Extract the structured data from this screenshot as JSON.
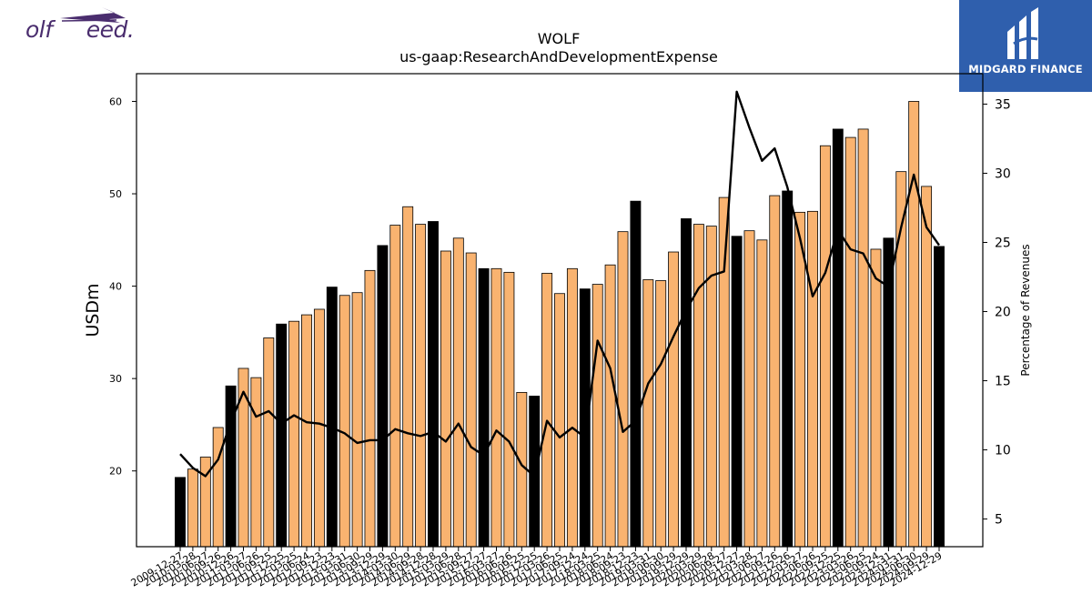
{
  "logos": {
    "left_text": "olf     eed.",
    "right_text": "MIDGARD FINANCE"
  },
  "chart_data": {
    "type": "bar",
    "title": "WOLF",
    "subtitle": "us-gaap:ResearchAndDevelopmentExpense",
    "ylabel": "USDm",
    "y2label": "Percentage of Revenues",
    "ylim": [
      11.8,
      63.0
    ],
    "y2lim": [
      3.0,
      37.2
    ],
    "yticks": [
      20,
      30,
      40,
      50,
      60
    ],
    "y2ticks": [
      5,
      10,
      15,
      20,
      25,
      30,
      35
    ],
    "categories": [
      "2009-12-27",
      "2010-03-28",
      "2010-06-27",
      "2010-09-26",
      "2010-12-26",
      "2011-03-27",
      "2011-06-26",
      "2011-09-25",
      "2011-12-25",
      "2012-03-25",
      "2012-06-24",
      "2012-09-23",
      "2012-12-23",
      "2013-03-31",
      "2013-06-30",
      "2013-09-29",
      "2013-12-29",
      "2014-03-30",
      "2014-06-29",
      "2014-09-28",
      "2014-12-28",
      "2015-03-29",
      "2015-06-28",
      "2015-09-27",
      "2015-12-27",
      "2016-03-27",
      "2016-06-26",
      "2016-09-25",
      "2016-12-25",
      "2017-03-26",
      "2017-06-25",
      "2017-09-24",
      "2017-12-24",
      "2018-03-25",
      "2018-06-24",
      "2018-09-23",
      "2018-12-23",
      "2019-03-31",
      "2019-06-30",
      "2019-09-29",
      "2019-12-29",
      "2020-03-29",
      "2020-06-28",
      "2020-09-27",
      "2020-12-27",
      "2021-03-28",
      "2021-06-27",
      "2021-09-26",
      "2021-12-26",
      "2022-03-27",
      "2022-06-26",
      "2022-09-25",
      "2022-12-25",
      "2023-03-26",
      "2023-06-25",
      "2023-09-24",
      "2023-12-31",
      "2024-03-31",
      "2024-06-30",
      "2024-09-29",
      "2024-12-29"
    ],
    "highlight_indices": [
      0,
      4,
      8,
      12,
      16,
      20,
      24,
      28,
      32,
      36,
      40,
      44,
      48,
      52,
      56,
      60
    ],
    "values": [
      19.3,
      20.2,
      21.5,
      24.7,
      29.2,
      31.1,
      30.1,
      34.4,
      35.9,
      36.2,
      36.9,
      37.5,
      39.9,
      39.0,
      39.3,
      41.7,
      44.4,
      46.6,
      48.6,
      46.7,
      47.0,
      43.8,
      45.2,
      43.6,
      41.9,
      41.9,
      41.5,
      28.5,
      28.1,
      41.4,
      39.2,
      41.9,
      39.7,
      40.2,
      42.3,
      45.9,
      49.2,
      40.7,
      40.6,
      43.7,
      47.3,
      46.7,
      46.5,
      49.6,
      45.4,
      46.0,
      45.0,
      49.8,
      50.3,
      48.0,
      48.1,
      55.2,
      57.0,
      56.1,
      57.0,
      44.0,
      45.2,
      52.4,
      60.0,
      50.8,
      44.3
    ],
    "pct_values": [
      9.7,
      8.7,
      8.1,
      9.3,
      12.0,
      14.2,
      12.4,
      12.8,
      11.9,
      12.5,
      12.0,
      11.9,
      11.6,
      11.2,
      10.5,
      10.7,
      10.7,
      11.5,
      11.2,
      11.0,
      11.3,
      10.6,
      11.9,
      10.2,
      9.6,
      11.4,
      10.6,
      8.9,
      8.1,
      12.1,
      10.9,
      11.6,
      10.9,
      17.9,
      15.9,
      11.3,
      12.1,
      14.8,
      16.2,
      18.2,
      20.1,
      21.7,
      22.6,
      22.9,
      35.9,
      33.3,
      30.9,
      31.8,
      29.0,
      25.3,
      21.1,
      22.8,
      25.9,
      24.5,
      24.2,
      22.4,
      21.8,
      26.1,
      29.9,
      26.1,
      24.8
    ]
  },
  "colors": {
    "bar": "#f9b370",
    "bar_highlight": "#000000",
    "line": "#000000",
    "logo_left": "#4a2d6e",
    "logo_right_bg": "#2f5fad"
  }
}
